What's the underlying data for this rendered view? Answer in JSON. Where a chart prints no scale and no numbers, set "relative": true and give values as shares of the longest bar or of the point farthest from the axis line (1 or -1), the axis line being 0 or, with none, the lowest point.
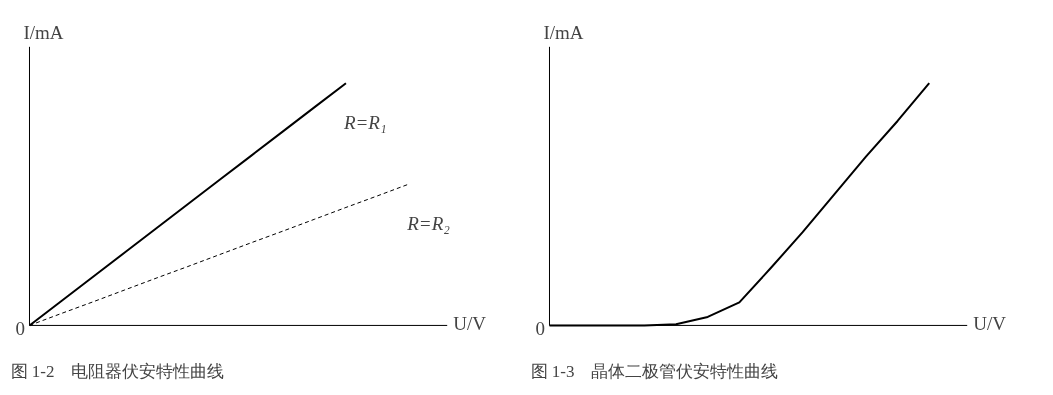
{
  "chart_data": [
    {
      "type": "line",
      "relative": true,
      "title": "图 1-2　电阻器伏安特性曲线",
      "xlabel": "U/V",
      "ylabel": "I/mA",
      "annotations": [
        "0"
      ],
      "categories": [
        null,
        null,
        null,
        null,
        null,
        null,
        null,
        null,
        null,
        null,
        null,
        null,
        null
      ],
      "series": [
        {
          "name": "R=R₁",
          "color": "#000000",
          "line_style": "solid",
          "values": [
            0,
            0.1,
            0.2,
            0.3,
            0.4,
            0.5,
            0.6,
            0.7,
            0.8,
            0.9,
            1,
            null,
            null
          ]
        },
        {
          "name": "R=R₂",
          "color": "#000000",
          "line_style": "dashed",
          "values": [
            0,
            0.049,
            0.097,
            0.146,
            0.195,
            0.243,
            0.292,
            0.341,
            0.389,
            0.438,
            0.487,
            0.535,
            0.584
          ]
        }
      ]
    },
    {
      "type": "line",
      "relative": true,
      "title": "图 1-3　晶体二极管伏安特性曲线",
      "xlabel": "U/V",
      "ylabel": "I/mA",
      "annotations": [
        "0"
      ],
      "categories": [
        null,
        null,
        null,
        null,
        null,
        null,
        null,
        null,
        null,
        null,
        null,
        null,
        null
      ],
      "series": [
        {
          "color": "#000000",
          "line_style": "solid",
          "values": [
            0,
            0,
            0,
            0,
            0.005,
            0.035,
            0.095,
            0.238,
            0.385,
            0.541,
            0.697,
            0.844,
            1
          ]
        }
      ]
    }
  ]
}
